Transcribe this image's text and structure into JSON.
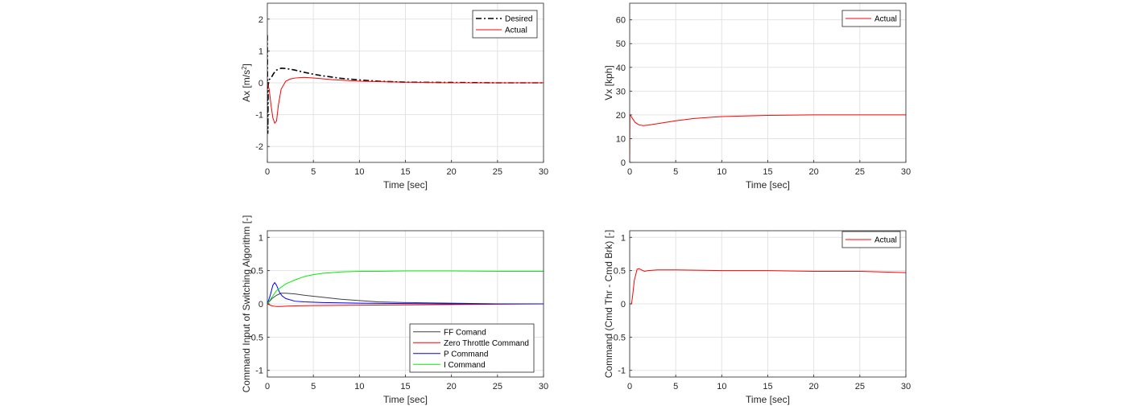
{
  "chart_data": [
    {
      "type": "line",
      "id": "ax",
      "xlabel": "Time [sec]",
      "ylabel": "Ax [m/s",
      "ylabel_sup": "2",
      "ylabel_tail": "]",
      "xlim": [
        0,
        30
      ],
      "ylim": [
        -2.5,
        2.5
      ],
      "xticks": [
        0,
        5,
        10,
        15,
        20,
        25,
        30
      ],
      "yticks": [
        -2,
        -1,
        0,
        1,
        2
      ],
      "ytick_labels": [
        "-2",
        "-1",
        "0",
        "1",
        "2"
      ],
      "grid": true,
      "legend": "top-right",
      "series": [
        {
          "name": "Desired",
          "color": "#000000",
          "style": "dashdot",
          "x": [
            0,
            0.05,
            0.1,
            0.2,
            0.4,
            0.7,
            1.0,
            1.5,
            2.0,
            3.0,
            4.0,
            5.0,
            6.0,
            8.0,
            10.0,
            12.0,
            15.0,
            20.0,
            25.0,
            30.0
          ],
          "y": [
            1.5,
            -1.6,
            0.05,
            0.1,
            0.15,
            0.3,
            0.4,
            0.46,
            0.45,
            0.4,
            0.33,
            0.27,
            0.22,
            0.14,
            0.09,
            0.05,
            0.02,
            0.01,
            0.0,
            0.0
          ]
        },
        {
          "name": "Actual",
          "color": "#ff0000",
          "style": "solid",
          "x": [
            0,
            0.2,
            0.4,
            0.6,
            0.8,
            1.0,
            1.2,
            1.5,
            2.0,
            2.5,
            3.0,
            4.0,
            5.0,
            7.0,
            10.0,
            15.0,
            20.0,
            25.0,
            30.0
          ],
          "y": [
            0.0,
            -0.2,
            -0.7,
            -1.1,
            -1.27,
            -1.2,
            -0.7,
            -0.2,
            0.05,
            0.12,
            0.15,
            0.17,
            0.15,
            0.1,
            0.05,
            0.02,
            0.0,
            0.0,
            0.0
          ]
        }
      ]
    },
    {
      "type": "line",
      "id": "vx",
      "xlabel": "Time [sec]",
      "ylabel": "Vx [kph]",
      "xlim": [
        0,
        30
      ],
      "ylim": [
        0,
        67
      ],
      "xticks": [
        0,
        5,
        10,
        15,
        20,
        25,
        30
      ],
      "yticks": [
        0,
        10,
        20,
        30,
        40,
        50,
        60
      ],
      "ytick_labels": [
        "0",
        "10",
        "20",
        "30",
        "40",
        "50",
        "60"
      ],
      "grid": true,
      "legend": "top-right",
      "series": [
        {
          "name": "Actual",
          "color": "#ff0000",
          "style": "solid",
          "x": [
            0,
            0.02,
            0.1,
            0.3,
            0.6,
            1.0,
            1.5,
            2.0,
            3.0,
            5.0,
            7.0,
            10.0,
            15.0,
            20.0,
            25.0,
            30.0
          ],
          "y": [
            0,
            20,
            19.8,
            18.5,
            16.8,
            15.8,
            15.5,
            15.7,
            16.3,
            17.5,
            18.5,
            19.3,
            19.8,
            20.0,
            20.0,
            20.0
          ]
        }
      ]
    },
    {
      "type": "line",
      "id": "cmd-input",
      "xlabel": "Time [sec]",
      "ylabel": "Command Input of Switching Algorithm [-]",
      "xlim": [
        0,
        30
      ],
      "ylim": [
        -1.1,
        1.1
      ],
      "xticks": [
        0,
        5,
        10,
        15,
        20,
        25,
        30
      ],
      "yticks": [
        -1,
        -0.5,
        0,
        0.5,
        1
      ],
      "ytick_labels": [
        "-1",
        "-0.5",
        "0",
        "0.5",
        "1"
      ],
      "grid": true,
      "legend": "bottom-right",
      "series": [
        {
          "name": "FF Comand",
          "color": "#404040",
          "style": "solid",
          "x": [
            0,
            0.5,
            1.0,
            1.5,
            2.0,
            3.0,
            4.0,
            6.0,
            8.0,
            10.0,
            12.0,
            15.0,
            20.0,
            25.0,
            30.0
          ],
          "y": [
            0,
            0.08,
            0.13,
            0.16,
            0.16,
            0.15,
            0.13,
            0.1,
            0.07,
            0.05,
            0.03,
            0.02,
            0.01,
            0.0,
            0.0
          ]
        },
        {
          "name": "Zero Throttle Command",
          "color": "#ff0000",
          "style": "solid",
          "x": [
            0,
            0.5,
            1.0,
            1.5,
            2.0,
            3.0,
            5.0,
            10.0,
            15.0,
            20.0,
            25.0,
            30.0
          ],
          "y": [
            0,
            -0.03,
            -0.04,
            -0.04,
            -0.035,
            -0.03,
            -0.025,
            -0.02,
            -0.015,
            -0.01,
            -0.005,
            0.0
          ]
        },
        {
          "name": "P Command",
          "color": "#0000ff",
          "style": "solid",
          "x": [
            0,
            0.3,
            0.6,
            0.8,
            1.0,
            1.3,
            1.6,
            2.0,
            3.0,
            4.0,
            6.0,
            10.0,
            15.0,
            20.0,
            30.0
          ],
          "y": [
            0,
            0.12,
            0.28,
            0.32,
            0.28,
            0.18,
            0.12,
            0.08,
            0.04,
            0.03,
            0.02,
            0.01,
            0.005,
            0.0,
            0.0
          ]
        },
        {
          "name": "I Command",
          "color": "#00ee00",
          "style": "solid",
          "x": [
            0,
            0.5,
            1.0,
            2.0,
            3.0,
            4.0,
            5.0,
            6.0,
            8.0,
            10.0,
            12.0,
            15.0,
            20.0,
            25.0,
            30.0
          ],
          "y": [
            0,
            0.1,
            0.2,
            0.3,
            0.36,
            0.41,
            0.44,
            0.46,
            0.48,
            0.49,
            0.49,
            0.495,
            0.495,
            0.49,
            0.49
          ]
        }
      ]
    },
    {
      "type": "line",
      "id": "cmd",
      "xlabel": "Time [sec]",
      "ylabel": "Command (Cmd Thr - Cmd Brk) [-]",
      "xlim": [
        0,
        30
      ],
      "ylim": [
        -1.1,
        1.1
      ],
      "xticks": [
        0,
        5,
        10,
        15,
        20,
        25,
        30
      ],
      "yticks": [
        -1,
        -0.5,
        0,
        0.5,
        1
      ],
      "ytick_labels": [
        "-1",
        "-0.5",
        "0",
        "0.5",
        "1"
      ],
      "grid": true,
      "legend": "top-right",
      "series": [
        {
          "name": "Actual",
          "color": "#ff0000",
          "style": "solid",
          "x": [
            0,
            0.2,
            0.3,
            0.5,
            0.8,
            1.0,
            1.3,
            1.6,
            2.0,
            3.0,
            5.0,
            10.0,
            15.0,
            20.0,
            25.0,
            30.0
          ],
          "y": [
            0,
            0,
            0.1,
            0.35,
            0.52,
            0.53,
            0.51,
            0.49,
            0.5,
            0.51,
            0.51,
            0.5,
            0.5,
            0.49,
            0.49,
            0.47
          ]
        }
      ]
    }
  ]
}
